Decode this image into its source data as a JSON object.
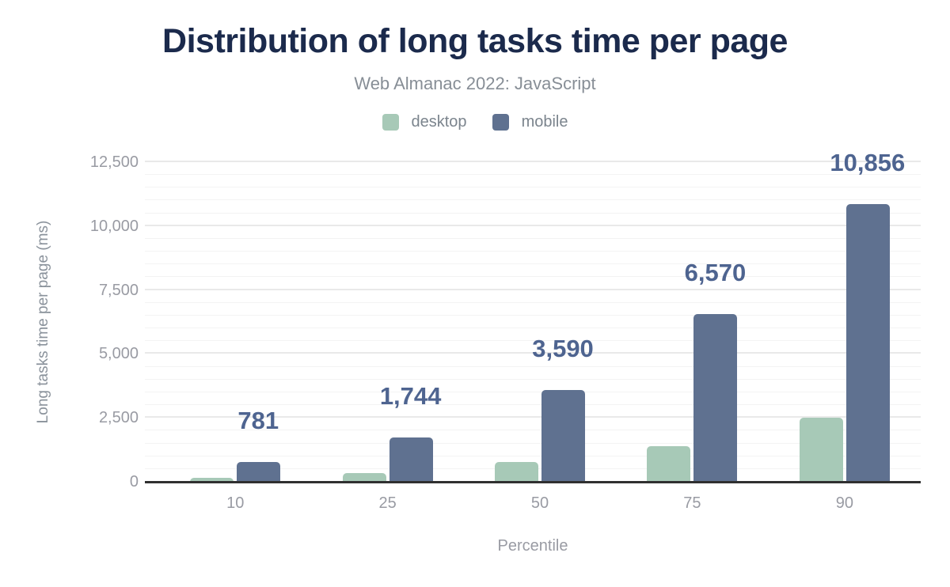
{
  "title": "Distribution of long tasks time per page",
  "subtitle": "Web Almanac 2022: JavaScript",
  "legend": [
    {
      "label": "desktop",
      "color": "#a7c9b7"
    },
    {
      "label": "mobile",
      "color": "#5f7190"
    }
  ],
  "colors": {
    "title": "#1b2a4c",
    "subtitle": "#878e96",
    "axis_text": "#999ba3",
    "desktop_series": "#a7c9b7",
    "mobile_series": "#5f7190",
    "data_label": "#4e6490",
    "axis_line": "#303030",
    "gridline_major": "#e9e9e9",
    "gridline_minor": "#f3f3f3",
    "background": "#ffffff"
  },
  "chart_data": {
    "type": "bar",
    "title": "Distribution of long tasks time per page",
    "subtitle": "Web Almanac 2022: JavaScript",
    "categories": [
      "10",
      "25",
      "50",
      "75",
      "90"
    ],
    "series": [
      {
        "name": "desktop",
        "color": "#a7c9b7",
        "values": [
          150,
          330,
          760,
          1380,
          2500
        ],
        "values_estimated": true,
        "data_labels": null
      },
      {
        "name": "mobile",
        "color": "#5f7190",
        "values": [
          781,
          1744,
          3590,
          6570,
          10856
        ],
        "values_estimated": false,
        "data_labels": [
          "781",
          "1,744",
          "3,590",
          "6,570",
          "10,856"
        ]
      }
    ],
    "xlabel": "Percentile",
    "ylabel": "Long tasks time per page (ms)",
    "ylim": [
      0,
      12500
    ],
    "ytick_step": 2500,
    "yminor_step": 500,
    "yticks": [
      "0",
      "2,500",
      "5,000",
      "7,500",
      "10,000",
      "12,500"
    ],
    "grid": "horizontal-major-and-minor",
    "legend_position": "top"
  }
}
